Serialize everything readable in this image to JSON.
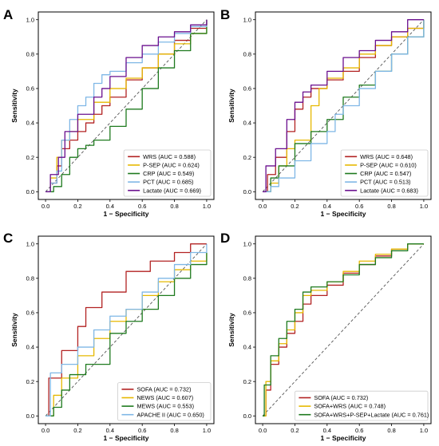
{
  "colors": {
    "red": "#b22222",
    "gold": "#e6b800",
    "green": "#1e7a1e",
    "lightblue": "#7fb7e6",
    "purple": "#6a0f8e",
    "diagonal": "#555555"
  },
  "chart_data": [
    {
      "type": "line",
      "panel": "A",
      "xlabel": "1 − Specificity",
      "ylabel": "Sensitivity",
      "xlim": [
        0,
        1
      ],
      "ylim": [
        0,
        1
      ],
      "x_ticks": [
        "0.0",
        "0.2",
        "0.4",
        "0.6",
        "0.8",
        "1.0"
      ],
      "y_ticks": [
        "0.0",
        "0.2",
        "0.4",
        "0.6",
        "0.8",
        "1.0"
      ],
      "grid": false,
      "legend_position": "bottom-right",
      "diagonal_reference": true,
      "series": [
        {
          "name": "WRS (AUC = 0.588)",
          "color": "red",
          "points": [
            [
              0,
              0
            ],
            [
              0.03,
              0.05
            ],
            [
              0.07,
              0.15
            ],
            [
              0.1,
              0.25
            ],
            [
              0.15,
              0.3
            ],
            [
              0.2,
              0.35
            ],
            [
              0.25,
              0.4
            ],
            [
              0.3,
              0.45
            ],
            [
              0.35,
              0.5
            ],
            [
              0.4,
              0.55
            ],
            [
              0.5,
              0.65
            ],
            [
              0.6,
              0.72
            ],
            [
              0.7,
              0.8
            ],
            [
              0.8,
              0.88
            ],
            [
              0.9,
              0.95
            ],
            [
              1,
              1
            ]
          ]
        },
        {
          "name": "P-SEP (AUC = 0.624)",
          "color": "gold",
          "points": [
            [
              0,
              0
            ],
            [
              0.03,
              0.08
            ],
            [
              0.07,
              0.2
            ],
            [
              0.1,
              0.3
            ],
            [
              0.15,
              0.35
            ],
            [
              0.2,
              0.42
            ],
            [
              0.3,
              0.52
            ],
            [
              0.4,
              0.6
            ],
            [
              0.5,
              0.66
            ],
            [
              0.6,
              0.72
            ],
            [
              0.7,
              0.8
            ],
            [
              0.8,
              0.86
            ],
            [
              0.9,
              0.92
            ],
            [
              1,
              1
            ]
          ]
        },
        {
          "name": "CRP (AUC = 0.549)",
          "color": "green",
          "points": [
            [
              0,
              0
            ],
            [
              0.05,
              0.03
            ],
            [
              0.1,
              0.1
            ],
            [
              0.15,
              0.2
            ],
            [
              0.2,
              0.25
            ],
            [
              0.25,
              0.27
            ],
            [
              0.3,
              0.3
            ],
            [
              0.4,
              0.38
            ],
            [
              0.5,
              0.48
            ],
            [
              0.6,
              0.6
            ],
            [
              0.7,
              0.72
            ],
            [
              0.8,
              0.82
            ],
            [
              0.9,
              0.92
            ],
            [
              1,
              1
            ]
          ]
        },
        {
          "name": "PCT (AUC = 0.685)",
          "color": "lightblue",
          "points": [
            [
              0,
              0
            ],
            [
              0.03,
              0.05
            ],
            [
              0.07,
              0.12
            ],
            [
              0.1,
              0.3
            ],
            [
              0.15,
              0.42
            ],
            [
              0.2,
              0.5
            ],
            [
              0.25,
              0.55
            ],
            [
              0.3,
              0.63
            ],
            [
              0.35,
              0.68
            ],
            [
              0.4,
              0.7
            ],
            [
              0.5,
              0.75
            ],
            [
              0.6,
              0.8
            ],
            [
              0.7,
              0.87
            ],
            [
              0.8,
              0.92
            ],
            [
              0.9,
              0.96
            ],
            [
              1,
              1
            ]
          ]
        },
        {
          "name": "Lactate (AUC = 0.669)",
          "color": "purple",
          "points": [
            [
              0,
              0
            ],
            [
              0.03,
              0.1
            ],
            [
              0.08,
              0.2
            ],
            [
              0.12,
              0.35
            ],
            [
              0.2,
              0.45
            ],
            [
              0.3,
              0.55
            ],
            [
              0.35,
              0.6
            ],
            [
              0.4,
              0.67
            ],
            [
              0.5,
              0.78
            ],
            [
              0.6,
              0.85
            ],
            [
              0.7,
              0.9
            ],
            [
              0.8,
              0.93
            ],
            [
              0.9,
              0.97
            ],
            [
              1,
              1
            ]
          ]
        }
      ]
    },
    {
      "type": "line",
      "panel": "B",
      "xlabel": "1 − Specificity",
      "ylabel": "Sensitivity",
      "xlim": [
        0,
        1
      ],
      "ylim": [
        0,
        1
      ],
      "x_ticks": [
        "0.0",
        "0.2",
        "0.4",
        "0.6",
        "0.8",
        "1.0"
      ],
      "y_ticks": [
        "0.0",
        "0.2",
        "0.4",
        "0.6",
        "0.8",
        "1.0"
      ],
      "grid": false,
      "legend_position": "bottom-right",
      "diagonal_reference": true,
      "series": [
        {
          "name": "WRS (AUC = 0.648)",
          "color": "red",
          "points": [
            [
              0,
              0
            ],
            [
              0.03,
              0.1
            ],
            [
              0.08,
              0.2
            ],
            [
              0.15,
              0.35
            ],
            [
              0.2,
              0.48
            ],
            [
              0.25,
              0.55
            ],
            [
              0.3,
              0.6
            ],
            [
              0.4,
              0.65
            ],
            [
              0.5,
              0.7
            ],
            [
              0.6,
              0.78
            ],
            [
              0.7,
              0.85
            ],
            [
              0.8,
              0.9
            ],
            [
              0.9,
              0.95
            ],
            [
              1,
              1
            ]
          ]
        },
        {
          "name": "P-SEP (AUC = 0.610)",
          "color": "gold",
          "points": [
            [
              0,
              0
            ],
            [
              0.05,
              0.05
            ],
            [
              0.1,
              0.15
            ],
            [
              0.15,
              0.25
            ],
            [
              0.2,
              0.3
            ],
            [
              0.3,
              0.5
            ],
            [
              0.35,
              0.6
            ],
            [
              0.4,
              0.66
            ],
            [
              0.5,
              0.72
            ],
            [
              0.6,
              0.8
            ],
            [
              0.7,
              0.85
            ],
            [
              0.8,
              0.9
            ],
            [
              0.9,
              0.95
            ],
            [
              1,
              1
            ]
          ]
        },
        {
          "name": "CRP (AUC = 0.547)",
          "color": "green",
          "points": [
            [
              0,
              0
            ],
            [
              0.05,
              0.08
            ],
            [
              0.1,
              0.15
            ],
            [
              0.2,
              0.28
            ],
            [
              0.3,
              0.35
            ],
            [
              0.4,
              0.42
            ],
            [
              0.5,
              0.55
            ],
            [
              0.6,
              0.62
            ],
            [
              0.7,
              0.7
            ],
            [
              0.8,
              0.8
            ],
            [
              0.9,
              0.9
            ],
            [
              1,
              1
            ]
          ]
        },
        {
          "name": "PCT (AUC = 0.513)",
          "color": "lightblue",
          "points": [
            [
              0,
              0
            ],
            [
              0.05,
              0.03
            ],
            [
              0.1,
              0.08
            ],
            [
              0.2,
              0.18
            ],
            [
              0.3,
              0.28
            ],
            [
              0.4,
              0.35
            ],
            [
              0.45,
              0.45
            ],
            [
              0.5,
              0.5
            ],
            [
              0.6,
              0.6
            ],
            [
              0.7,
              0.7
            ],
            [
              0.8,
              0.8
            ],
            [
              0.9,
              0.9
            ],
            [
              1,
              1
            ]
          ]
        },
        {
          "name": "Lactate (AUC = 0.683)",
          "color": "purple",
          "points": [
            [
              0,
              0
            ],
            [
              0.02,
              0.15
            ],
            [
              0.08,
              0.25
            ],
            [
              0.15,
              0.42
            ],
            [
              0.2,
              0.52
            ],
            [
              0.25,
              0.58
            ],
            [
              0.3,
              0.62
            ],
            [
              0.4,
              0.7
            ],
            [
              0.5,
              0.78
            ],
            [
              0.6,
              0.82
            ],
            [
              0.7,
              0.88
            ],
            [
              0.8,
              0.93
            ],
            [
              0.9,
              1
            ],
            [
              1,
              1
            ]
          ]
        }
      ]
    },
    {
      "type": "line",
      "panel": "C",
      "xlabel": "1 − Specificity",
      "ylabel": "Sensitivity",
      "xlim": [
        0,
        1
      ],
      "ylim": [
        0,
        1
      ],
      "x_ticks": [
        "0.0",
        "0.2",
        "0.4",
        "0.6",
        "0.8",
        "1.0"
      ],
      "y_ticks": [
        "0.0",
        "0.2",
        "0.4",
        "0.6",
        "0.8",
        "1.0"
      ],
      "grid": false,
      "legend_position": "bottom-right",
      "diagonal_reference": true,
      "series": [
        {
          "name": "SOFA (AUC = 0.732)",
          "color": "red",
          "points": [
            [
              0,
              0
            ],
            [
              0.02,
              0.22
            ],
            [
              0.1,
              0.38
            ],
            [
              0.2,
              0.52
            ],
            [
              0.25,
              0.63
            ],
            [
              0.35,
              0.72
            ],
            [
              0.5,
              0.84
            ],
            [
              0.65,
              0.9
            ],
            [
              0.8,
              0.95
            ],
            [
              0.9,
              1
            ],
            [
              1,
              1
            ]
          ]
        },
        {
          "name": "NEWS (AUC = 0.607)",
          "color": "gold",
          "points": [
            [
              0,
              0
            ],
            [
              0.05,
              0.12
            ],
            [
              0.1,
              0.22
            ],
            [
              0.2,
              0.35
            ],
            [
              0.3,
              0.45
            ],
            [
              0.4,
              0.55
            ],
            [
              0.5,
              0.62
            ],
            [
              0.6,
              0.7
            ],
            [
              0.7,
              0.78
            ],
            [
              0.8,
              0.85
            ],
            [
              0.9,
              0.9
            ],
            [
              1,
              0.95
            ]
          ]
        },
        {
          "name": "MEWS (AUC = 0.553)",
          "color": "green",
          "points": [
            [
              0,
              0
            ],
            [
              0.05,
              0.05
            ],
            [
              0.1,
              0.15
            ],
            [
              0.15,
              0.24
            ],
            [
              0.25,
              0.3
            ],
            [
              0.4,
              0.48
            ],
            [
              0.5,
              0.55
            ],
            [
              0.6,
              0.62
            ],
            [
              0.7,
              0.7
            ],
            [
              0.8,
              0.8
            ],
            [
              0.9,
              0.88
            ],
            [
              1,
              0.95
            ]
          ]
        },
        {
          "name": "APACHE II (AUC = 0.650)",
          "color": "lightblue",
          "points": [
            [
              0,
              0
            ],
            [
              0.03,
              0.25
            ],
            [
              0.1,
              0.3
            ],
            [
              0.2,
              0.4
            ],
            [
              0.3,
              0.5
            ],
            [
              0.4,
              0.58
            ],
            [
              0.5,
              0.62
            ],
            [
              0.6,
              0.72
            ],
            [
              0.7,
              0.8
            ],
            [
              0.8,
              0.88
            ],
            [
              0.9,
              0.95
            ],
            [
              1,
              1
            ]
          ]
        }
      ]
    },
    {
      "type": "line",
      "panel": "D",
      "xlabel": "1 − Specificity",
      "ylabel": "Sensitivity",
      "xlim": [
        0,
        1
      ],
      "ylim": [
        0,
        1
      ],
      "x_ticks": [
        "0.0",
        "0.2",
        "0.4",
        "0.6",
        "0.8",
        "1.0"
      ],
      "y_ticks": [
        "0.0",
        "0.2",
        "0.4",
        "0.6",
        "0.8",
        "1.0"
      ],
      "grid": false,
      "legend_position": "bottom-right",
      "diagonal_reference": true,
      "series": [
        {
          "name": "SOFA (AUC = 0.732)",
          "color": "red",
          "points": [
            [
              0,
              0
            ],
            [
              0.02,
              0.15
            ],
            [
              0.05,
              0.3
            ],
            [
              0.1,
              0.4
            ],
            [
              0.15,
              0.48
            ],
            [
              0.2,
              0.55
            ],
            [
              0.25,
              0.65
            ],
            [
              0.3,
              0.7
            ],
            [
              0.4,
              0.76
            ],
            [
              0.5,
              0.83
            ],
            [
              0.6,
              0.88
            ],
            [
              0.7,
              0.93
            ],
            [
              0.8,
              0.97
            ],
            [
              0.9,
              1
            ],
            [
              1,
              1
            ]
          ]
        },
        {
          "name": "SOFA+WRS (AUC = 0.748)",
          "color": "gold",
          "points": [
            [
              0,
              0
            ],
            [
              0.02,
              0.2
            ],
            [
              0.05,
              0.32
            ],
            [
              0.1,
              0.42
            ],
            [
              0.15,
              0.5
            ],
            [
              0.2,
              0.6
            ],
            [
              0.25,
              0.7
            ],
            [
              0.3,
              0.73
            ],
            [
              0.4,
              0.78
            ],
            [
              0.5,
              0.84
            ],
            [
              0.6,
              0.9
            ],
            [
              0.7,
              0.94
            ],
            [
              0.8,
              0.97
            ],
            [
              0.9,
              1
            ],
            [
              1,
              1
            ]
          ]
        },
        {
          "name": "SOFA+WRS+P-SEP+Lactate (AUC = 0.761)",
          "color": "green",
          "points": [
            [
              0,
              0
            ],
            [
              0.01,
              0.18
            ],
            [
              0.05,
              0.35
            ],
            [
              0.1,
              0.45
            ],
            [
              0.15,
              0.55
            ],
            [
              0.2,
              0.62
            ],
            [
              0.25,
              0.72
            ],
            [
              0.3,
              0.75
            ],
            [
              0.4,
              0.78
            ],
            [
              0.5,
              0.82
            ],
            [
              0.6,
              0.88
            ],
            [
              0.7,
              0.92
            ],
            [
              0.8,
              0.96
            ],
            [
              0.9,
              1
            ],
            [
              1,
              1
            ]
          ]
        }
      ]
    }
  ]
}
